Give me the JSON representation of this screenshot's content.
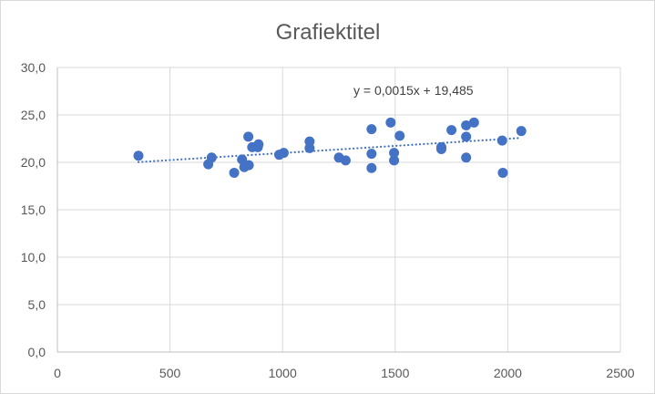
{
  "chart_data": {
    "type": "scatter",
    "title": "Grafiektitel",
    "xlabel": "",
    "ylabel": "",
    "xlim": [
      0,
      2500
    ],
    "ylim": [
      0,
      30
    ],
    "x_ticks": [
      0,
      500,
      1000,
      1500,
      2000,
      2500
    ],
    "x_tick_labels": [
      "0",
      "500",
      "1000",
      "1500",
      "2000",
      "2500"
    ],
    "y_ticks": [
      0,
      5,
      10,
      15,
      20,
      25,
      30
    ],
    "y_tick_labels": [
      "0,0",
      "5,0",
      "10,0",
      "15,0",
      "20,0",
      "25,0",
      "30,0"
    ],
    "grid": true,
    "legend": "none",
    "marker_color": "#4472c4",
    "trendline": {
      "type": "linear",
      "slope": 0.0015,
      "intercept": 19.485,
      "x_range": [
        360,
        2060
      ],
      "label": "y = 0,0015x + 19,485",
      "style": "dotted",
      "color": "#4472c4"
    },
    "points": [
      {
        "x": 360,
        "y": 20.7
      },
      {
        "x": 670,
        "y": 19.8
      },
      {
        "x": 685,
        "y": 20.5
      },
      {
        "x": 785,
        "y": 18.9
      },
      {
        "x": 820,
        "y": 20.3
      },
      {
        "x": 830,
        "y": 19.5
      },
      {
        "x": 850,
        "y": 19.7
      },
      {
        "x": 848,
        "y": 22.7
      },
      {
        "x": 865,
        "y": 21.6
      },
      {
        "x": 890,
        "y": 21.6
      },
      {
        "x": 893,
        "y": 21.9
      },
      {
        "x": 985,
        "y": 20.8
      },
      {
        "x": 1005,
        "y": 21.0
      },
      {
        "x": 1120,
        "y": 22.2
      },
      {
        "x": 1120,
        "y": 21.5
      },
      {
        "x": 1250,
        "y": 20.5
      },
      {
        "x": 1280,
        "y": 20.2
      },
      {
        "x": 1395,
        "y": 23.5
      },
      {
        "x": 1395,
        "y": 20.9
      },
      {
        "x": 1395,
        "y": 19.4
      },
      {
        "x": 1480,
        "y": 24.2
      },
      {
        "x": 1495,
        "y": 21.0
      },
      {
        "x": 1495,
        "y": 20.2
      },
      {
        "x": 1520,
        "y": 22.8
      },
      {
        "x": 1705,
        "y": 21.6
      },
      {
        "x": 1705,
        "y": 21.4
      },
      {
        "x": 1750,
        "y": 23.4
      },
      {
        "x": 1815,
        "y": 23.9
      },
      {
        "x": 1815,
        "y": 22.7
      },
      {
        "x": 1815,
        "y": 20.5
      },
      {
        "x": 1850,
        "y": 24.2
      },
      {
        "x": 1975,
        "y": 22.3
      },
      {
        "x": 1978,
        "y": 18.9
      },
      {
        "x": 2060,
        "y": 23.3
      }
    ]
  }
}
